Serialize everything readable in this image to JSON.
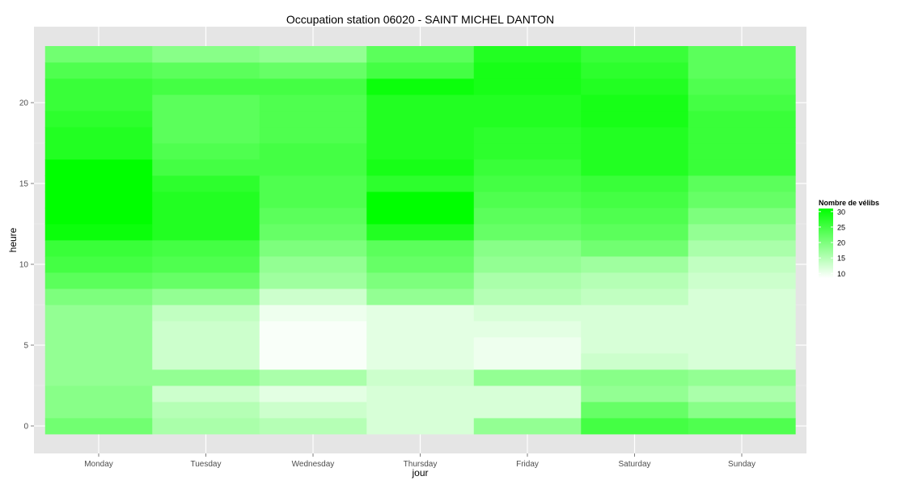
{
  "chart_data": {
    "type": "heatmap",
    "title": "Occupation station 06020 - SAINT MICHEL DANTON",
    "xlabel": "jour",
    "ylabel": "heure",
    "categories": [
      "Monday",
      "Tuesday",
      "Wednesday",
      "Thursday",
      "Friday",
      "Saturday",
      "Sunday"
    ],
    "y_values": [
      0,
      1,
      2,
      3,
      4,
      5,
      6,
      7,
      8,
      9,
      10,
      11,
      12,
      13,
      14,
      15,
      16,
      17,
      18,
      19,
      20,
      21,
      22,
      23
    ],
    "y_ticks": [
      0,
      5,
      10,
      15,
      20
    ],
    "y_range": [
      -0.5,
      23.5
    ],
    "grid": true,
    "legend": {
      "title": "Nombre de vélibs",
      "position": "right",
      "breaks": [
        30,
        25,
        20,
        15,
        10
      ],
      "range": [
        8.5,
        31
      ],
      "color_low": "#ffffff",
      "color_high": "#00ff00"
    },
    "values": [
      [
        21,
        16,
        15,
        12,
        18,
        25,
        24
      ],
      [
        19,
        15,
        13,
        12,
        12,
        22,
        19
      ],
      [
        19,
        13,
        11,
        12,
        12,
        18,
        16
      ],
      [
        18,
        18,
        16,
        13,
        18,
        19,
        18
      ],
      [
        18,
        13,
        9,
        11,
        10,
        13,
        12
      ],
      [
        18,
        13,
        9,
        11,
        10,
        12,
        12
      ],
      [
        18,
        13,
        9,
        11,
        11,
        12,
        12
      ],
      [
        18,
        14,
        10,
        11,
        12,
        12,
        12
      ],
      [
        20,
        18,
        13,
        18,
        15,
        14,
        12
      ],
      [
        23,
        22,
        17,
        20,
        16,
        15,
        13
      ],
      [
        25,
        24,
        18,
        22,
        18,
        17,
        14
      ],
      [
        26,
        25,
        20,
        23,
        19,
        21,
        16
      ],
      [
        30,
        28,
        22,
        28,
        22,
        23,
        18
      ],
      [
        31,
        28,
        23,
        31,
        23,
        24,
        20
      ],
      [
        31,
        28,
        24,
        31,
        24,
        25,
        22
      ],
      [
        31,
        27,
        24,
        27,
        25,
        26,
        23
      ],
      [
        31,
        25,
        25,
        29,
        26,
        28,
        26
      ],
      [
        28,
        24,
        25,
        28,
        27,
        28,
        26
      ],
      [
        28,
        23,
        24,
        28,
        27,
        28,
        26
      ],
      [
        27,
        23,
        24,
        28,
        28,
        29,
        26
      ],
      [
        26,
        23,
        24,
        28,
        28,
        29,
        25
      ],
      [
        26,
        25,
        25,
        30,
        29,
        28,
        24
      ],
      [
        24,
        23,
        22,
        25,
        29,
        27,
        23
      ],
      [
        21,
        19,
        18,
        23,
        28,
        26,
        23
      ]
    ]
  }
}
